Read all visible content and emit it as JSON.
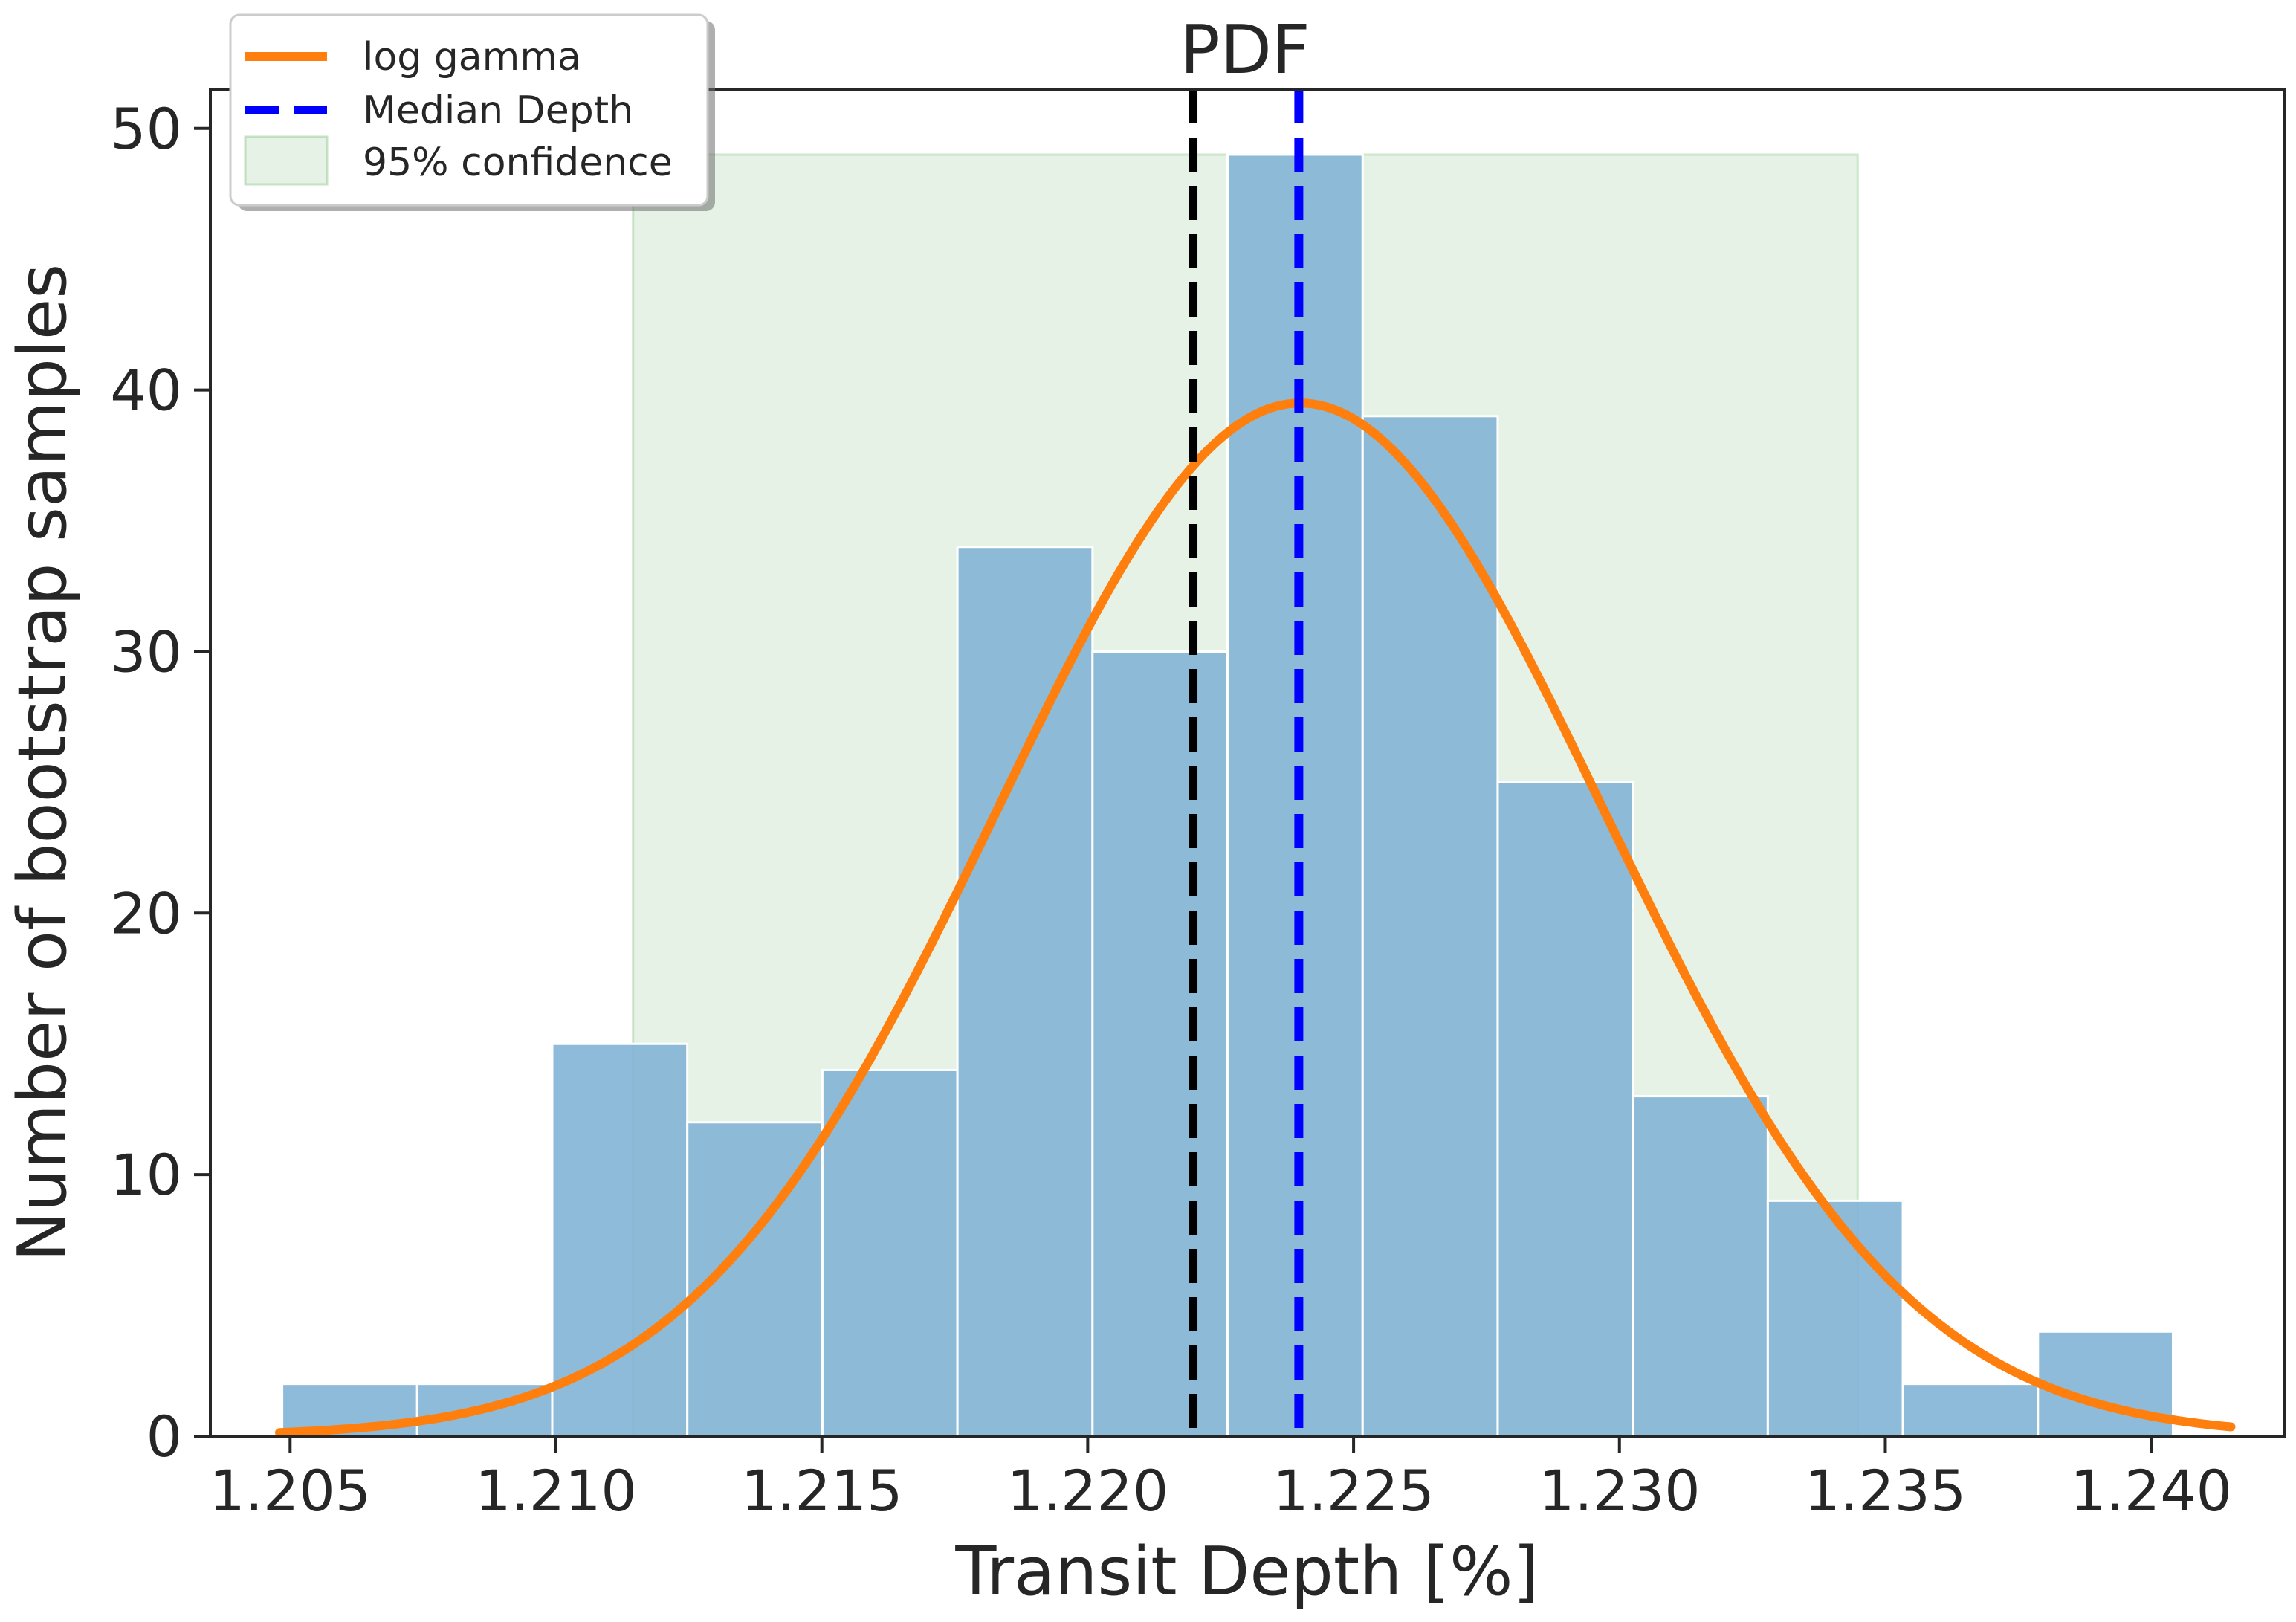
{
  "chart_data": {
    "type": "bar",
    "title": "PDF",
    "xlabel": "Transit Depth [%]",
    "ylabel": "Number of bootstrap samples",
    "xlim": [
      1.2035,
      1.2425
    ],
    "ylim": [
      0,
      51.5
    ],
    "xticks": [
      1.205,
      1.21,
      1.215,
      1.22,
      1.225,
      1.23,
      1.235,
      1.24
    ],
    "xtick_labels": [
      "1.205",
      "1.210",
      "1.215",
      "1.220",
      "1.225",
      "1.230",
      "1.235",
      "1.240"
    ],
    "yticks": [
      0,
      10,
      20,
      30,
      40,
      50
    ],
    "ytick_labels": [
      "0",
      "10",
      "20",
      "30",
      "40",
      "50"
    ],
    "grid": false,
    "histogram": {
      "bin_edges": [
        1.20485,
        1.20739,
        1.20993,
        1.21247,
        1.21501,
        1.21755,
        1.22009,
        1.22263,
        1.22517,
        1.22771,
        1.23025,
        1.23279,
        1.23533,
        1.23787,
        1.24041
      ],
      "counts": [
        2,
        2,
        15,
        12,
        14,
        34,
        30,
        49,
        39,
        25,
        13,
        9,
        2,
        4
      ],
      "color": "#7fb2d5"
    },
    "fit": {
      "name": "log gamma",
      "color": "#ff7f0e",
      "peak_x": 1.224,
      "peak_y": 39.5,
      "sigma": 0.0057,
      "x_range": [
        1.2048,
        1.2415
      ]
    },
    "vlines": [
      {
        "x": 1.22198,
        "color": "#000000",
        "style": "dashed"
      },
      {
        "name": "Median Depth",
        "x": 1.22397,
        "color": "#0000ff",
        "style": "dashed"
      }
    ],
    "confidence_band": {
      "name": "95% confidence",
      "x_range": [
        1.21145,
        1.23448
      ],
      "y_top": 49,
      "color": "#d4ead4"
    },
    "legend": {
      "placement": "top-left",
      "entries": [
        "log gamma",
        "Median Depth",
        "95% confidence"
      ]
    }
  }
}
